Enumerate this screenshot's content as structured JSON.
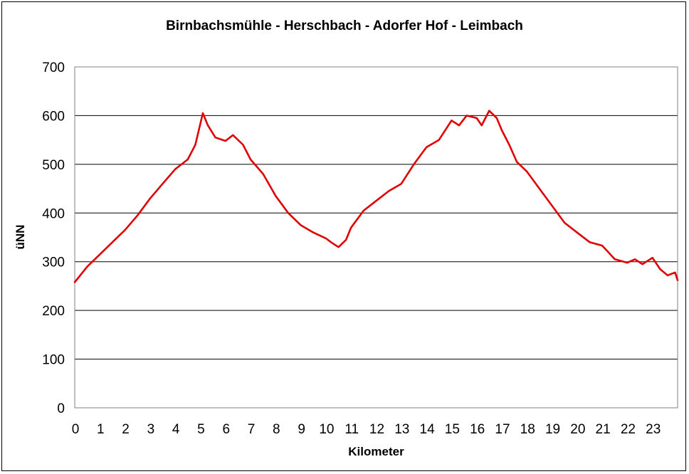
{
  "chart_data": {
    "type": "line",
    "title": "Birnbachsmühle - Herschbach - Adorfer Hof - Leimbach",
    "xlabel": "Kilometer",
    "ylabel": "üNN",
    "xlim": [
      0,
      24
    ],
    "ylim": [
      0,
      700
    ],
    "x_ticks": [
      "0",
      "1",
      "2",
      "3",
      "4",
      "5",
      "6",
      "7",
      "8",
      "9",
      "10",
      "11",
      "12",
      "13",
      "14",
      "15",
      "16",
      "17",
      "18",
      "19",
      "20",
      "21",
      "22",
      "23"
    ],
    "y_ticks": [
      "0",
      "100",
      "200",
      "300",
      "400",
      "500",
      "600",
      "700"
    ],
    "grid": "horizontal",
    "line_color": "#e00000",
    "series": [
      {
        "x": [
          0,
          0.5,
          1,
          1.5,
          2,
          2.5,
          3,
          3.5,
          4,
          4.5,
          4.8,
          5.1,
          5.3,
          5.6,
          6,
          6.3,
          6.7,
          7,
          7.5,
          8,
          8.5,
          9,
          9.5,
          10,
          10.2,
          10.5,
          10.8,
          11,
          11.5,
          12,
          12.5,
          13,
          13.5,
          14,
          14.5,
          15,
          15.3,
          15.6,
          16,
          16.2,
          16.5,
          16.8,
          17,
          17.3,
          17.6,
          18,
          18.5,
          19,
          19.5,
          20,
          20.5,
          21,
          21.5,
          22,
          22.3,
          22.6,
          23,
          23.3,
          23.6,
          23.9,
          24
        ],
        "y": [
          258,
          290,
          315,
          340,
          365,
          395,
          430,
          460,
          490,
          510,
          540,
          605,
          580,
          555,
          548,
          560,
          540,
          510,
          480,
          435,
          400,
          375,
          360,
          348,
          340,
          330,
          345,
          370,
          405,
          425,
          445,
          460,
          500,
          535,
          550,
          590,
          580,
          600,
          595,
          580,
          610,
          595,
          570,
          540,
          505,
          485,
          450,
          415,
          380,
          360,
          340,
          333,
          305,
          298,
          305,
          295,
          308,
          285,
          272,
          278,
          262
        ]
      }
    ]
  }
}
